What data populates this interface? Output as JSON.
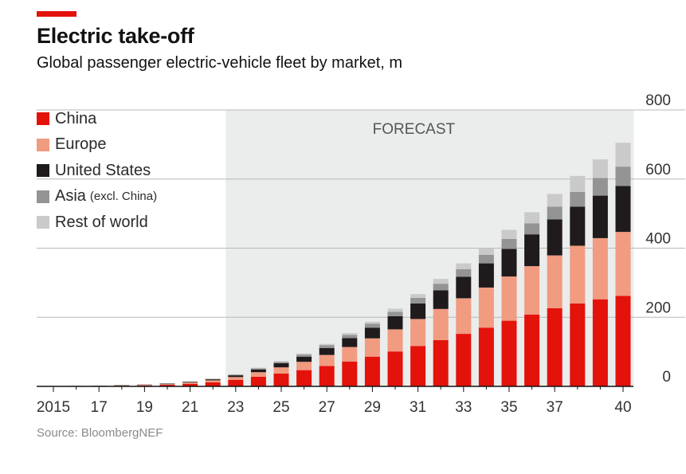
{
  "header": {
    "title": "Electric take-off",
    "subtitle": "Global passenger electric-vehicle fleet by market, m"
  },
  "source": "Source: BloombergNEF",
  "colors": {
    "accent": "#e3120b",
    "China": "#e3120b",
    "Europe": "#f19b80",
    "United States": "#1f1b1c",
    "Asia": "#949494",
    "Rest of world": "#cacaca",
    "forecast_band": "#ebecec",
    "gridline": "#b8b8b8"
  },
  "legend": [
    {
      "label": "China",
      "note": ""
    },
    {
      "label": "Europe",
      "note": ""
    },
    {
      "label": "United States",
      "note": ""
    },
    {
      "label": "Asia",
      "note": "(excl. China)"
    },
    {
      "label": "Rest of world",
      "note": ""
    }
  ],
  "chart_data": {
    "type": "bar",
    "stacked": true,
    "title": "Electric take-off",
    "subtitle": "Global passenger electric-vehicle fleet by market, m",
    "unit": "m",
    "xlabel": "",
    "ylabel": "",
    "ylim": [
      0,
      800
    ],
    "yticks": [
      0,
      200,
      400,
      600,
      800
    ],
    "y_axis_side": "right",
    "grid": true,
    "forecast": {
      "label": "FORECAST",
      "start_year": 2023,
      "end_year": 2040
    },
    "categories": [
      2015,
      2016,
      2017,
      2018,
      2019,
      2020,
      2021,
      2022,
      2023,
      2024,
      2025,
      2026,
      2027,
      2028,
      2029,
      2030,
      2031,
      2032,
      2033,
      2034,
      2035,
      2036,
      2037,
      2038,
      2039,
      2040
    ],
    "xtick_labels": [
      {
        "year": 2015,
        "label": "2015"
      },
      {
        "year": 2017,
        "label": "17"
      },
      {
        "year": 2019,
        "label": "19"
      },
      {
        "year": 2021,
        "label": "21"
      },
      {
        "year": 2023,
        "label": "23"
      },
      {
        "year": 2025,
        "label": "25"
      },
      {
        "year": 2027,
        "label": "27"
      },
      {
        "year": 2029,
        "label": "29"
      },
      {
        "year": 2031,
        "label": "31"
      },
      {
        "year": 2033,
        "label": "33"
      },
      {
        "year": 2035,
        "label": "35"
      },
      {
        "year": 2037,
        "label": "37"
      },
      {
        "year": 2040,
        "label": "40"
      }
    ],
    "series": [
      {
        "name": "China",
        "values": [
          0.2,
          0.5,
          1,
          2,
          3,
          4.5,
          7.5,
          12,
          19,
          28,
          37,
          47,
          59,
          72,
          86,
          101,
          117,
          134,
          152,
          170,
          190,
          208,
          226,
          240,
          252,
          262
        ]
      },
      {
        "name": "Europe",
        "values": [
          0.2,
          0.3,
          0.5,
          0.8,
          1.2,
          2,
          3.5,
          5.5,
          8,
          13,
          18,
          24,
          32,
          42,
          53,
          64,
          78,
          90,
          103,
          116,
          128,
          140,
          153,
          167,
          177,
          185
        ]
      },
      {
        "name": "United States",
        "values": [
          0.3,
          0.4,
          0.6,
          0.8,
          1.2,
          1.5,
          2,
          3,
          5,
          8,
          12,
          15,
          20,
          26,
          31,
          38,
          45,
          54,
          62,
          70,
          80,
          92,
          104,
          113,
          123,
          133
        ]
      },
      {
        "name": "Asia",
        "values": [
          0.1,
          0.1,
          0.2,
          0.3,
          0.4,
          0.5,
          0.7,
          1,
          2,
          3,
          4,
          6,
          8,
          9,
          11,
          13,
          16,
          19,
          22,
          25,
          29,
          32,
          37,
          43,
          51,
          56
        ]
      },
      {
        "name": "Rest of world",
        "values": [
          0.1,
          0.1,
          0.1,
          0.2,
          0.3,
          0.4,
          0.5,
          1,
          1,
          2,
          2,
          3,
          4,
          5,
          6,
          9,
          11,
          14,
          17,
          19,
          26,
          32,
          37,
          46,
          54,
          69
        ]
      }
    ]
  }
}
